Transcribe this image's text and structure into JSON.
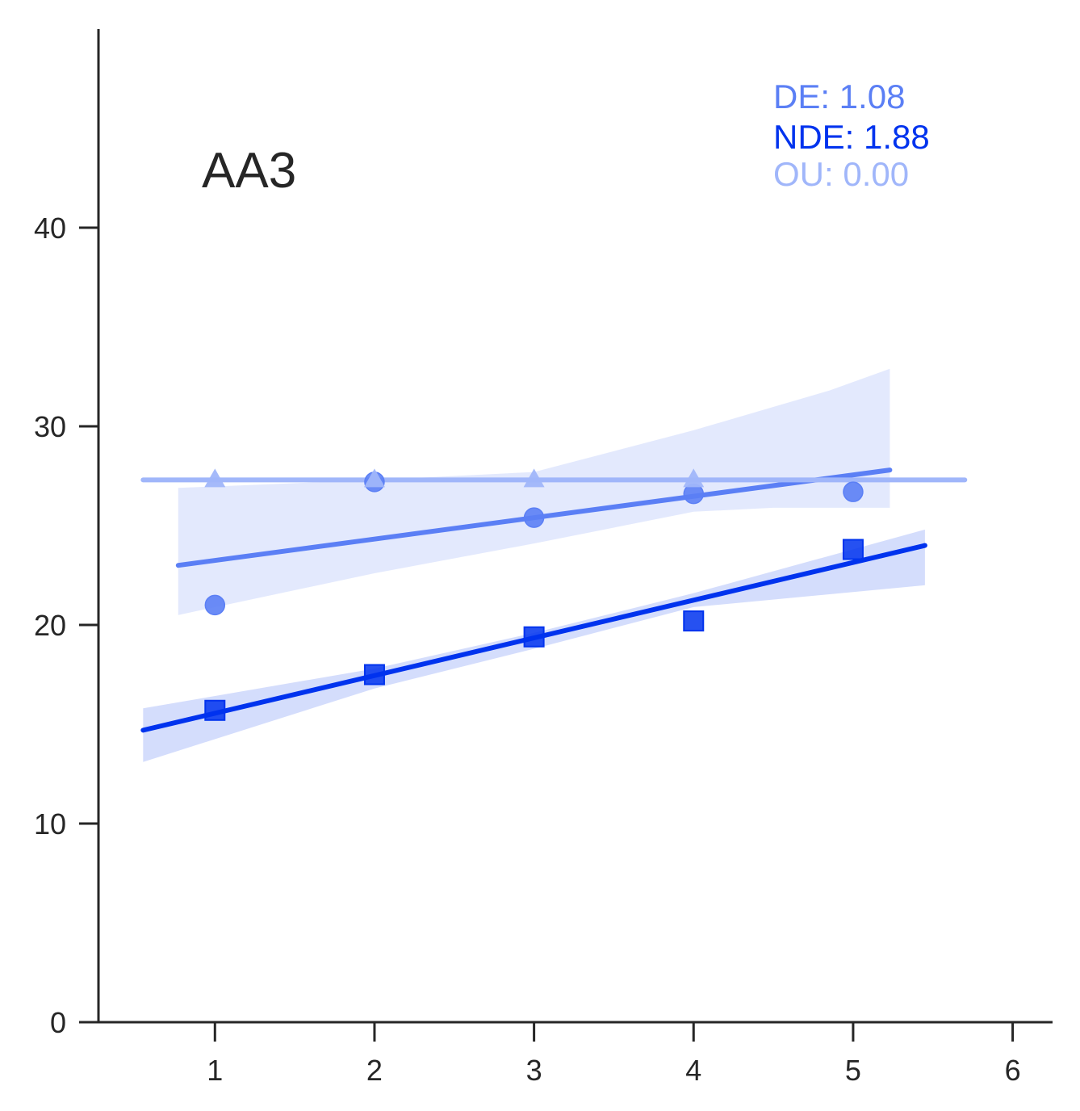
{
  "chart_data": {
    "type": "scatter",
    "title": "AA3",
    "xlabel": "",
    "ylabel": "",
    "xlim": [
      0.27,
      6.25
    ],
    "ylim": [
      0,
      50
    ],
    "xticks": [
      "1",
      "2",
      "3",
      "4",
      "5",
      "6"
    ],
    "yticks": [
      "0",
      "10",
      "20",
      "30",
      "40"
    ],
    "grid": false,
    "legend_placement": "top-right",
    "annotations": [
      {
        "text": "DE: 1.08",
        "color": "#5b7ff5"
      },
      {
        "text": "NDE: 1.88",
        "color": "#0033ee"
      },
      {
        "text": "OU: 0.00",
        "color": "#a0b6fa"
      }
    ],
    "series": [
      {
        "name": "DE",
        "marker": "circle",
        "color": "#5b7ff5",
        "x": [
          1,
          2,
          3,
          4,
          5
        ],
        "y": [
          21.0,
          27.2,
          25.4,
          26.6,
          26.7
        ],
        "fit": {
          "x": [
            0.77,
            5.23
          ],
          "y": [
            23.0,
            27.8
          ]
        },
        "ci_upper": {
          "x": [
            0.77,
            2.0,
            3.0,
            4.0,
            4.85,
            5.23
          ],
          "y": [
            26.9,
            27.3,
            27.7,
            29.8,
            31.8,
            32.9
          ]
        },
        "ci_lower": {
          "x": [
            0.77,
            2.0,
            3.0,
            4.0,
            4.5,
            5.23
          ],
          "y": [
            20.5,
            22.6,
            24.1,
            25.7,
            25.9,
            25.9
          ]
        }
      },
      {
        "name": "NDE",
        "marker": "square",
        "color": "#0033ee",
        "x": [
          1,
          2,
          3,
          4,
          5
        ],
        "y": [
          15.7,
          17.5,
          19.4,
          20.2,
          23.8
        ],
        "fit": {
          "x": [
            0.55,
            5.45
          ],
          "y": [
            14.7,
            24.0
          ]
        },
        "ci_upper": {
          "x": [
            0.55,
            2.0,
            3.0,
            4.0,
            5.45
          ],
          "y": [
            15.8,
            17.8,
            19.6,
            21.6,
            24.8
          ]
        },
        "ci_lower": {
          "x": [
            0.55,
            2.0,
            3.0,
            4.0,
            5.45
          ],
          "y": [
            13.1,
            16.8,
            18.8,
            20.9,
            22.0
          ]
        }
      },
      {
        "name": "OU",
        "marker": "triangle",
        "color": "#a0b6fa",
        "x": [
          1,
          2,
          3,
          4
        ],
        "y": [
          27.3,
          27.3,
          27.3,
          27.3
        ],
        "fit": {
          "x": [
            0.55,
            5.7
          ],
          "y": [
            27.3,
            27.3
          ]
        }
      }
    ]
  }
}
